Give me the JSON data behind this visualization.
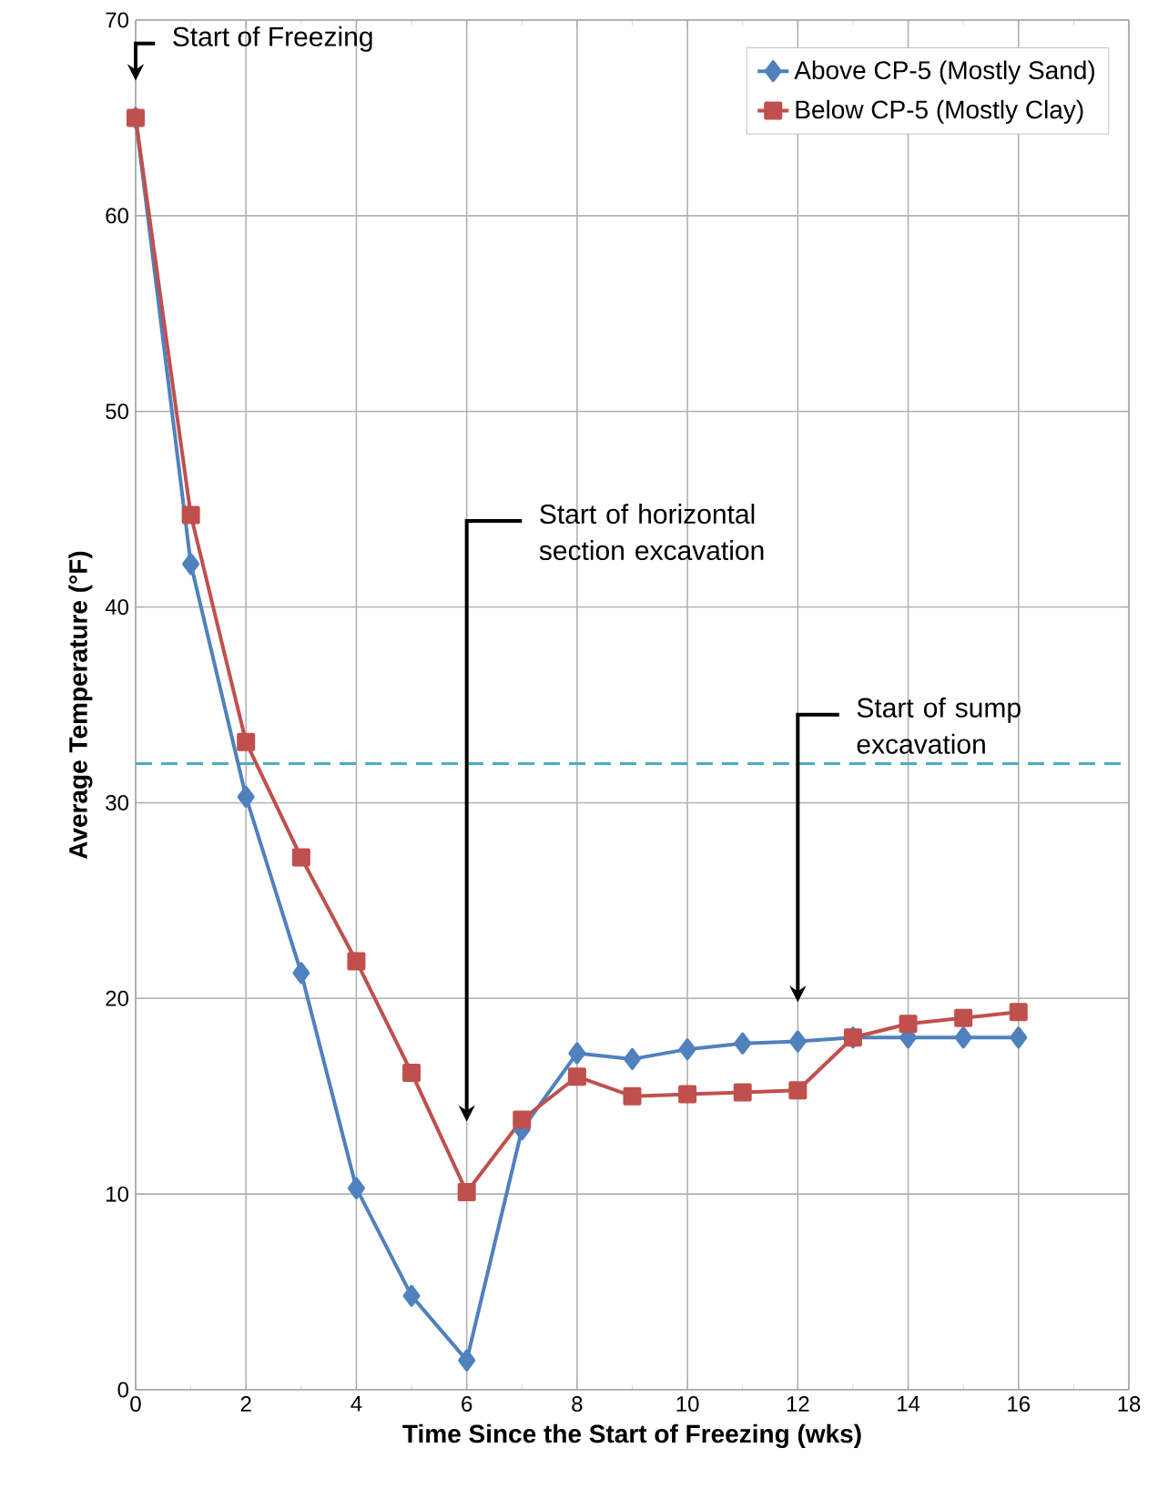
{
  "chart_data": {
    "type": "line",
    "xlabel": "Time Since the Start of Freezing (wks)",
    "ylabel": "Average Temperature  (°F)",
    "x": [
      0,
      1,
      2,
      3,
      4,
      5,
      6,
      7,
      8,
      9,
      10,
      11,
      12,
      13,
      14,
      15,
      16
    ],
    "series": [
      {
        "name": "Above CP-5 (Mostly Sand)",
        "color": "#4f81bd",
        "marker": "diamond",
        "values": [
          65,
          42.2,
          30.3,
          21.3,
          10.3,
          4.8,
          1.5,
          13.3,
          17.2,
          16.9,
          17.4,
          17.7,
          17.8,
          18.0,
          18.0,
          18.0,
          18.0
        ]
      },
      {
        "name": "Below CP-5 (Mostly Clay)",
        "color": "#c0504d",
        "marker": "square",
        "values": [
          65,
          44.7,
          33.1,
          27.2,
          21.9,
          16.2,
          10.1,
          13.8,
          16.0,
          15.0,
          15.1,
          15.2,
          15.3,
          18.0,
          18.7,
          19.0,
          19.3
        ]
      }
    ],
    "xlim": [
      0,
      18
    ],
    "xticks": [
      0,
      2,
      4,
      6,
      8,
      10,
      12,
      14,
      16,
      18
    ],
    "ylim": [
      0,
      70
    ],
    "yticks": [
      0,
      10,
      20,
      30,
      40,
      50,
      60,
      70
    ],
    "grid": true,
    "legend": "top right",
    "line_style": "solid",
    "ref_lines": [
      {
        "axis": "y",
        "value": 32,
        "color": "#4bacc6",
        "line_style": "dashed"
      }
    ],
    "annotations": [
      "Start of Freezing",
      "Start of horizontal section excavation",
      "Start of sump excavation"
    ]
  }
}
